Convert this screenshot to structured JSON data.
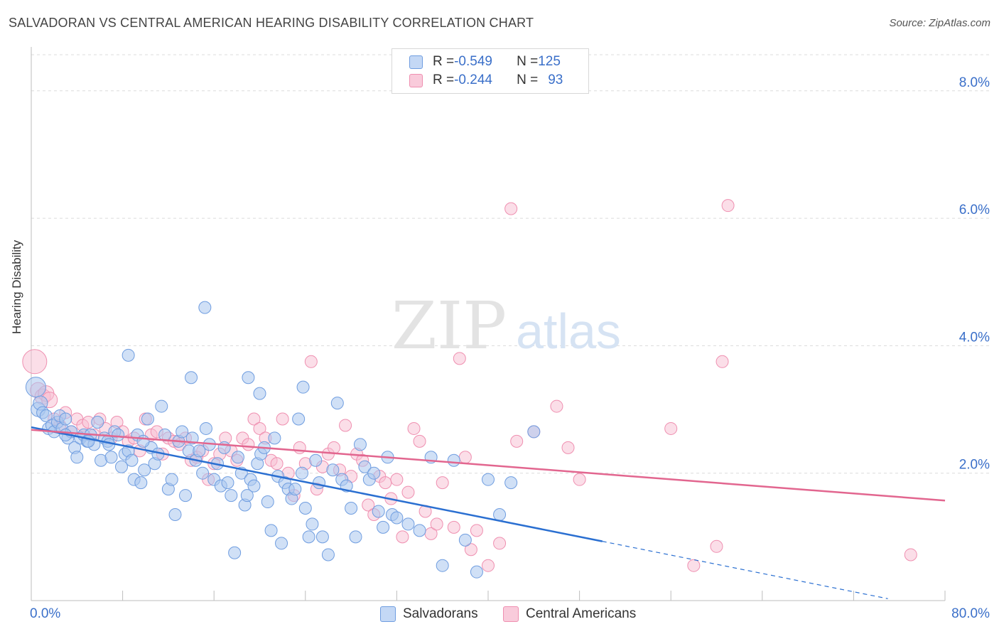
{
  "header": {
    "title": "SALVADORAN VS CENTRAL AMERICAN HEARING DISABILITY CORRELATION CHART",
    "source": "Source: ZipAtlas.com"
  },
  "watermark": {
    "zip": "ZIP",
    "atlas": "atlas"
  },
  "legend": {
    "rows": [
      {
        "r_label": "R = ",
        "r_value": "-0.549",
        "n_label": "N = ",
        "n_value": "125",
        "color": "#6f9de0"
      },
      {
        "r_label": "R = ",
        "r_value": "-0.244",
        "n_label": "N = ",
        "n_value": "93",
        "color": "#ef8fb0"
      }
    ]
  },
  "bottom_legend": [
    {
      "label": "Salvadorans",
      "color": "#6f9de0"
    },
    {
      "label": "Central Americans",
      "color": "#ef8fb0"
    }
  ],
  "chart_data": {
    "type": "scatter",
    "title": "SALVADORAN VS CENTRAL AMERICAN HEARING DISABILITY CORRELATION CHART",
    "xlabel": "",
    "ylabel": "Hearing Disability",
    "xlim": [
      0,
      80
    ],
    "ylim": [
      0,
      8.6
    ],
    "x_tick_labels": [
      "0.0%",
      "80.0%"
    ],
    "y_ticks": [
      2,
      4,
      6,
      8
    ],
    "y_tick_labels": [
      "2.0%",
      "4.0%",
      "6.0%",
      "8.0%"
    ],
    "grid": true,
    "legend_position": "top-center",
    "series": [
      {
        "name": "Salvadorans",
        "color": "#6f9de0",
        "trend": {
          "x0": 0,
          "y0": 2.72,
          "x1": 50,
          "y1": 0.93,
          "dashed_to_x": 75,
          "dashed_to_y": 0.03
        },
        "points": [
          [
            0.4,
            3.35
          ],
          [
            0.6,
            3.0
          ],
          [
            0.8,
            3.1
          ],
          [
            1.0,
            2.95
          ],
          [
            1.3,
            2.9
          ],
          [
            1.5,
            2.7
          ],
          [
            1.8,
            2.75
          ],
          [
            2.0,
            2.65
          ],
          [
            2.3,
            2.8
          ],
          [
            2.5,
            2.9
          ],
          [
            2.7,
            2.7
          ],
          [
            3.0,
            2.85
          ],
          [
            3.2,
            2.55
          ],
          [
            3.5,
            2.65
          ],
          [
            3.8,
            2.4
          ],
          [
            4.0,
            2.25
          ],
          [
            4.3,
            2.55
          ],
          [
            4.6,
            2.6
          ],
          [
            4.9,
            2.5
          ],
          [
            5.2,
            2.6
          ],
          [
            5.5,
            2.45
          ],
          [
            5.8,
            2.8
          ],
          [
            6.1,
            2.2
          ],
          [
            6.4,
            2.55
          ],
          [
            6.7,
            2.5
          ],
          [
            7.0,
            2.25
          ],
          [
            7.3,
            2.65
          ],
          [
            7.6,
            2.6
          ],
          [
            7.9,
            2.1
          ],
          [
            8.2,
            2.3
          ],
          [
            8.5,
            2.35
          ],
          [
            8.8,
            2.2
          ],
          [
            9.0,
            1.9
          ],
          [
            9.3,
            2.6
          ],
          [
            9.6,
            1.85
          ],
          [
            9.9,
            2.05
          ],
          [
            10.2,
            2.85
          ],
          [
            10.5,
            2.4
          ],
          [
            10.8,
            2.15
          ],
          [
            11.1,
            2.3
          ],
          [
            11.4,
            3.05
          ],
          [
            11.7,
            2.6
          ],
          [
            12.0,
            1.75
          ],
          [
            12.3,
            1.9
          ],
          [
            12.6,
            1.35
          ],
          [
            12.9,
            2.5
          ],
          [
            13.2,
            2.65
          ],
          [
            13.5,
            1.65
          ],
          [
            13.8,
            2.35
          ],
          [
            14.1,
            2.55
          ],
          [
            14.4,
            2.2
          ],
          [
            14.7,
            2.35
          ],
          [
            15.0,
            2.0
          ],
          [
            15.3,
            2.7
          ],
          [
            15.6,
            2.45
          ],
          [
            15.2,
            4.6
          ],
          [
            16.0,
            1.9
          ],
          [
            16.3,
            2.15
          ],
          [
            16.6,
            1.8
          ],
          [
            16.9,
            2.4
          ],
          [
            17.2,
            1.85
          ],
          [
            17.5,
            1.65
          ],
          [
            17.8,
            0.75
          ],
          [
            18.1,
            2.25
          ],
          [
            18.4,
            2.0
          ],
          [
            18.7,
            1.5
          ],
          [
            18.9,
            1.65
          ],
          [
            19.2,
            1.9
          ],
          [
            19.5,
            1.8
          ],
          [
            19.8,
            2.15
          ],
          [
            20.1,
            2.3
          ],
          [
            20.4,
            2.4
          ],
          [
            20.7,
            1.55
          ],
          [
            21.0,
            1.1
          ],
          [
            21.3,
            2.55
          ],
          [
            21.6,
            1.95
          ],
          [
            21.9,
            0.9
          ],
          [
            22.2,
            1.85
          ],
          [
            22.5,
            1.75
          ],
          [
            22.8,
            1.6
          ],
          [
            23.1,
            1.75
          ],
          [
            23.4,
            2.85
          ],
          [
            23.7,
            2.0
          ],
          [
            24.0,
            1.45
          ],
          [
            24.3,
            1.0
          ],
          [
            24.6,
            1.2
          ],
          [
            24.9,
            2.2
          ],
          [
            25.2,
            1.85
          ],
          [
            25.5,
            1.0
          ],
          [
            26.0,
            0.72
          ],
          [
            26.4,
            2.05
          ],
          [
            26.8,
            3.1
          ],
          [
            27.2,
            1.9
          ],
          [
            27.6,
            1.8
          ],
          [
            28.0,
            1.45
          ],
          [
            28.4,
            1.0
          ],
          [
            28.8,
            2.45
          ],
          [
            29.2,
            2.1
          ],
          [
            29.6,
            1.9
          ],
          [
            30.0,
            2.0
          ],
          [
            30.4,
            1.4
          ],
          [
            30.8,
            1.15
          ],
          [
            31.2,
            2.25
          ],
          [
            31.6,
            1.35
          ],
          [
            32.0,
            1.3
          ],
          [
            33.0,
            1.2
          ],
          [
            34.0,
            1.1
          ],
          [
            35.0,
            2.25
          ],
          [
            36.0,
            0.55
          ],
          [
            37.0,
            2.2
          ],
          [
            38.0,
            0.95
          ],
          [
            39.0,
            0.45
          ],
          [
            40.0,
            1.9
          ],
          [
            41.0,
            1.35
          ],
          [
            42.0,
            1.85
          ],
          [
            44.0,
            2.65
          ],
          [
            8.5,
            3.85
          ],
          [
            14.0,
            3.5
          ],
          [
            19.0,
            3.5
          ],
          [
            20.0,
            3.25
          ],
          [
            23.8,
            3.35
          ],
          [
            5.0,
            2.5
          ],
          [
            3.0,
            2.6
          ],
          [
            6.8,
            2.45
          ],
          [
            9.8,
            2.5
          ]
        ]
      },
      {
        "name": "Central Americans",
        "color": "#ef8fb0",
        "trend": {
          "x0": 0,
          "y0": 2.68,
          "x1": 80,
          "y1": 1.57
        },
        "points": [
          [
            0.3,
            3.75
          ],
          [
            0.6,
            3.3
          ],
          [
            1.0,
            3.2
          ],
          [
            1.3,
            3.25
          ],
          [
            1.6,
            3.15
          ],
          [
            2.0,
            2.85
          ],
          [
            2.5,
            2.75
          ],
          [
            3.0,
            2.95
          ],
          [
            3.5,
            2.65
          ],
          [
            4.0,
            2.85
          ],
          [
            4.5,
            2.75
          ],
          [
            5.0,
            2.8
          ],
          [
            5.5,
            2.6
          ],
          [
            6.0,
            2.85
          ],
          [
            6.5,
            2.7
          ],
          [
            7.0,
            2.55
          ],
          [
            7.5,
            2.8
          ],
          [
            8.0,
            2.65
          ],
          [
            8.5,
            2.5
          ],
          [
            9.0,
            2.55
          ],
          [
            9.5,
            2.35
          ],
          [
            10.0,
            2.85
          ],
          [
            10.5,
            2.6
          ],
          [
            11.0,
            2.65
          ],
          [
            11.5,
            2.3
          ],
          [
            12.0,
            2.55
          ],
          [
            12.5,
            2.5
          ],
          [
            13.0,
            2.45
          ],
          [
            13.5,
            2.55
          ],
          [
            14.0,
            2.2
          ],
          [
            14.5,
            2.25
          ],
          [
            15.0,
            2.35
          ],
          [
            15.5,
            1.9
          ],
          [
            16.0,
            2.15
          ],
          [
            16.5,
            2.3
          ],
          [
            17.0,
            2.55
          ],
          [
            17.5,
            2.35
          ],
          [
            18.0,
            2.2
          ],
          [
            18.5,
            2.55
          ],
          [
            19.0,
            2.45
          ],
          [
            19.5,
            2.85
          ],
          [
            20.0,
            2.7
          ],
          [
            20.5,
            2.55
          ],
          [
            21.0,
            2.2
          ],
          [
            21.5,
            2.15
          ],
          [
            22.0,
            2.85
          ],
          [
            22.5,
            2.0
          ],
          [
            23.0,
            1.65
          ],
          [
            23.5,
            2.4
          ],
          [
            24.0,
            2.15
          ],
          [
            24.5,
            3.75
          ],
          [
            25.0,
            1.75
          ],
          [
            25.5,
            2.1
          ],
          [
            26.0,
            2.3
          ],
          [
            26.5,
            2.4
          ],
          [
            27.0,
            2.05
          ],
          [
            27.5,
            2.75
          ],
          [
            28.0,
            1.95
          ],
          [
            28.5,
            2.3
          ],
          [
            29.0,
            2.2
          ],
          [
            29.5,
            1.5
          ],
          [
            30.0,
            1.35
          ],
          [
            30.5,
            1.95
          ],
          [
            31.0,
            1.85
          ],
          [
            31.5,
            1.6
          ],
          [
            32.0,
            1.9
          ],
          [
            32.5,
            1.0
          ],
          [
            33.0,
            1.7
          ],
          [
            33.5,
            2.7
          ],
          [
            34.0,
            2.5
          ],
          [
            34.5,
            1.4
          ],
          [
            35.0,
            1.05
          ],
          [
            35.5,
            1.2
          ],
          [
            36.0,
            1.85
          ],
          [
            37.0,
            1.15
          ],
          [
            38.0,
            2.25
          ],
          [
            38.5,
            0.8
          ],
          [
            39.0,
            1.1
          ],
          [
            40.0,
            0.55
          ],
          [
            41.0,
            0.9
          ],
          [
            42.0,
            6.15
          ],
          [
            44.0,
            2.65
          ],
          [
            46.0,
            3.05
          ],
          [
            47.0,
            2.4
          ],
          [
            48.0,
            1.9
          ],
          [
            56.0,
            2.7
          ],
          [
            58.0,
            0.55
          ],
          [
            60.0,
            0.85
          ],
          [
            60.5,
            3.75
          ],
          [
            61.0,
            6.2
          ],
          [
            77.0,
            0.72
          ],
          [
            37.5,
            3.8
          ],
          [
            42.5,
            2.5
          ]
        ]
      }
    ]
  }
}
